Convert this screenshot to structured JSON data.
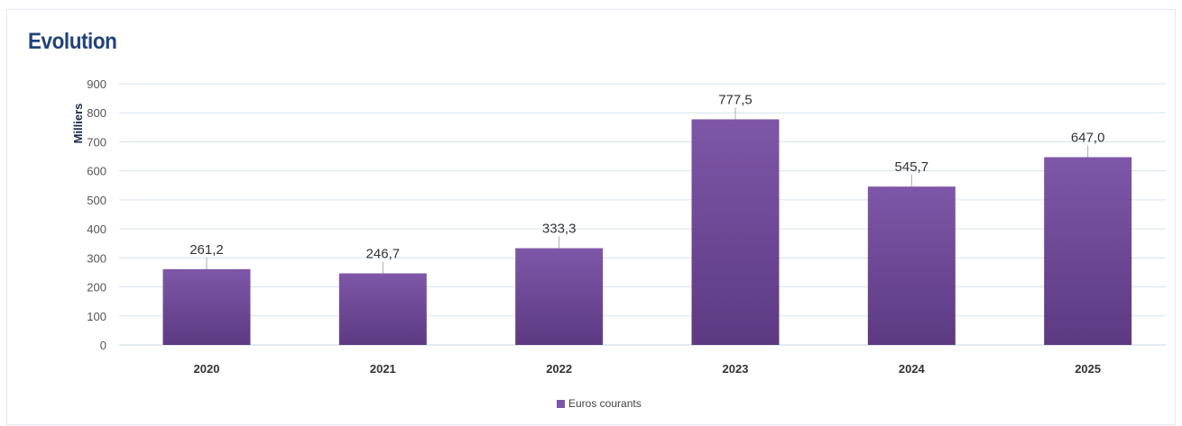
{
  "chart_data": {
    "type": "bar",
    "title": "Evolution",
    "ylabel": "Milliers",
    "xlabel": "",
    "categories": [
      "2020",
      "2021",
      "2022",
      "2023",
      "2024",
      "2025"
    ],
    "series": [
      {
        "name": "Euros courants",
        "values": [
          261.2,
          246.7,
          333.3,
          777.5,
          545.7,
          647.0
        ],
        "data_labels": [
          "261,2",
          "246,7",
          "333,3",
          "777,5",
          "545,7",
          "647,0"
        ],
        "color": "#7e57a8",
        "color_dark": "#5c3a82"
      }
    ],
    "ylim": [
      0,
      900
    ],
    "yticks": [
      0,
      100,
      200,
      300,
      400,
      500,
      600,
      700,
      800,
      900
    ],
    "grid": true,
    "legend_position": "bottom"
  },
  "colors": {
    "title": "#23427a",
    "grid": "#d7e3ee",
    "axis": "#c7d4e2"
  }
}
